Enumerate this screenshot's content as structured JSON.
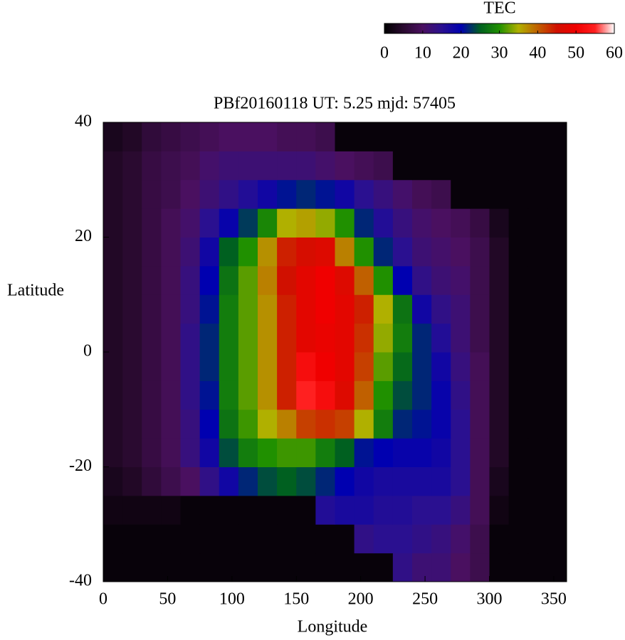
{
  "chart_data": {
    "type": "heatmap",
    "title": "PBf20160118  UT: 5.25  mjd: 57405",
    "x_label": "Longitude",
    "y_label": "Latitude",
    "colorbar_title": "TEC",
    "xlim": [
      0,
      360
    ],
    "xticks": [
      0,
      50,
      100,
      150,
      200,
      250,
      300,
      350
    ],
    "ylim": [
      -40,
      40
    ],
    "yticks": [
      -40,
      -20,
      0,
      20,
      40
    ],
    "zlim": [
      0,
      60
    ],
    "zticks": [
      0,
      10,
      20,
      30,
      40,
      50,
      60
    ],
    "colormap": [
      "#000000",
      "#2a0a30",
      "#4a1060",
      "#2a1090",
      "#0000b0",
      "#006020",
      "#209000",
      "#b0b000",
      "#c06000",
      "#d01000",
      "#f00000",
      "#ff2020",
      "#ffffff"
    ],
    "xbins": [
      0,
      15,
      30,
      45,
      60,
      75,
      90,
      105,
      120,
      135,
      150,
      165,
      180,
      195,
      210,
      225,
      240,
      255,
      270,
      285,
      300,
      315,
      330,
      345,
      360
    ],
    "ybins": [
      -40,
      -35,
      -30,
      -25,
      -20,
      -15,
      -10,
      -5,
      0,
      5,
      10,
      15,
      20,
      25,
      30,
      35,
      40
    ],
    "z": [
      [
        1,
        1,
        1,
        1,
        1,
        1,
        1,
        1,
        1,
        1,
        1,
        1,
        1,
        1,
        1,
        14,
        12,
        12,
        10,
        8,
        1,
        1,
        1,
        1
      ],
      [
        1,
        1,
        1,
        1,
        1,
        1,
        1,
        1,
        1,
        1,
        1,
        1,
        1,
        14,
        15,
        15,
        14,
        13,
        11,
        8,
        1,
        1,
        1,
        1
      ],
      [
        2,
        2,
        2,
        2,
        1,
        1,
        1,
        1,
        1,
        1,
        1,
        16,
        17,
        17,
        16,
        16,
        15,
        15,
        13,
        9,
        2,
        1,
        1,
        1
      ],
      [
        3,
        4,
        6,
        8,
        10,
        14,
        18,
        22,
        24,
        25,
        24,
        22,
        20,
        18,
        17,
        17,
        17,
        17,
        15,
        9,
        3,
        1,
        1,
        1
      ],
      [
        4,
        5,
        7,
        9,
        13,
        18,
        24,
        28,
        30,
        31,
        31,
        28,
        25,
        21,
        20,
        19,
        19,
        18,
        15,
        9,
        4,
        1,
        1,
        1
      ],
      [
        4,
        5,
        7,
        9,
        13,
        20,
        27,
        31,
        35,
        38,
        42,
        43,
        42,
        35,
        28,
        22,
        21,
        19,
        15,
        9,
        4,
        1,
        1,
        1
      ],
      [
        4,
        5,
        7,
        9,
        14,
        21,
        28,
        32,
        37,
        44,
        55,
        52,
        47,
        40,
        30,
        24,
        22,
        19,
        14,
        9,
        4,
        1,
        1,
        1
      ],
      [
        4,
        5,
        7,
        9,
        14,
        22,
        28,
        32,
        37,
        44,
        52,
        50,
        48,
        42,
        32,
        26,
        22,
        18,
        13,
        9,
        4,
        1,
        1,
        1
      ],
      [
        4,
        5,
        7,
        9,
        14,
        22,
        28,
        32,
        37,
        44,
        48,
        49,
        48,
        43,
        34,
        28,
        22,
        16,
        12,
        8,
        4,
        1,
        1,
        1
      ],
      [
        4,
        5,
        7,
        9,
        13,
        21,
        28,
        32,
        37,
        44,
        48,
        50,
        48,
        44,
        35,
        27,
        18,
        14,
        12,
        8,
        4,
        1,
        1,
        1
      ],
      [
        4,
        5,
        7,
        9,
        13,
        20,
        27,
        32,
        38,
        45,
        48,
        50,
        47,
        40,
        30,
        20,
        14,
        12,
        11,
        8,
        4,
        1,
        1,
        1
      ],
      [
        4,
        5,
        7,
        9,
        12,
        18,
        25,
        30,
        37,
        44,
        46,
        47,
        38,
        30,
        22,
        15,
        12,
        11,
        10,
        8,
        4,
        1,
        1,
        1
      ],
      [
        4,
        5,
        7,
        9,
        11,
        15,
        19,
        23,
        29,
        35,
        36,
        34,
        30,
        22,
        16,
        13,
        11,
        10,
        9,
        7,
        3,
        1,
        1,
        1
      ],
      [
        4,
        5,
        7,
        8,
        10,
        12,
        14,
        16,
        18,
        21,
        22,
        21,
        18,
        15,
        13,
        11,
        9,
        8,
        1,
        1,
        1,
        1,
        1,
        1
      ],
      [
        4,
        5,
        7,
        8,
        9,
        11,
        12,
        12,
        12,
        12,
        12,
        11,
        10,
        9,
        8,
        1,
        1,
        1,
        1,
        1,
        1,
        1,
        1,
        1
      ],
      [
        3,
        4,
        6,
        7,
        8,
        9,
        10,
        10,
        10,
        9,
        9,
        8,
        1,
        1,
        1,
        1,
        1,
        1,
        1,
        1,
        1,
        1,
        1,
        1
      ]
    ]
  }
}
